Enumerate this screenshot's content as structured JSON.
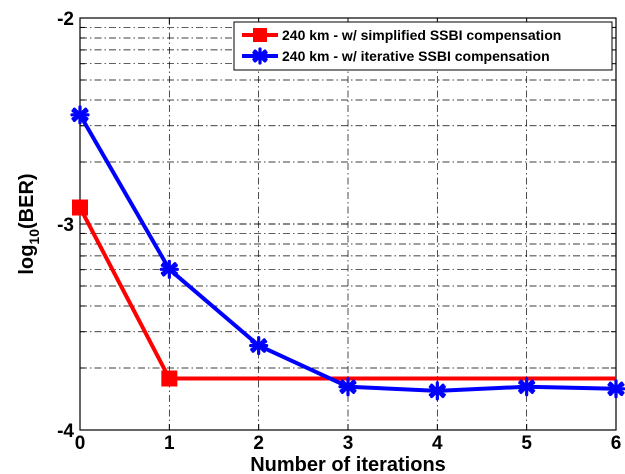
{
  "chart_data": {
    "type": "line",
    "title": "",
    "xlabel": "Number of iterations",
    "ylabel": {
      "base": "log",
      "subscript": "10",
      "rest": "(BER)"
    },
    "xlim": [
      0,
      6
    ],
    "ylim": [
      -4,
      -2
    ],
    "x_ticks": [
      0,
      1,
      2,
      3,
      4,
      5,
      6
    ],
    "y_ticks": [
      -4,
      -3,
      -2
    ],
    "y_scale": "log-decade minor gridlines",
    "grid": true,
    "legend_position": "top-right",
    "series": [
      {
        "name": "240 km - w/ simplified SSBI compensation",
        "color": "#ff0000",
        "marker": "square",
        "x": [
          0,
          1,
          6
        ],
        "y": [
          -2.92,
          -3.75,
          -3.75
        ]
      },
      {
        "name": "240 km - w/ iterative SSBI compensation",
        "color": "#0000ff",
        "marker": "asterisk",
        "x": [
          0,
          1,
          2,
          3,
          4,
          5,
          6
        ],
        "y": [
          -2.47,
          -3.22,
          -3.59,
          -3.79,
          -3.81,
          -3.79,
          -3.8
        ]
      }
    ]
  }
}
